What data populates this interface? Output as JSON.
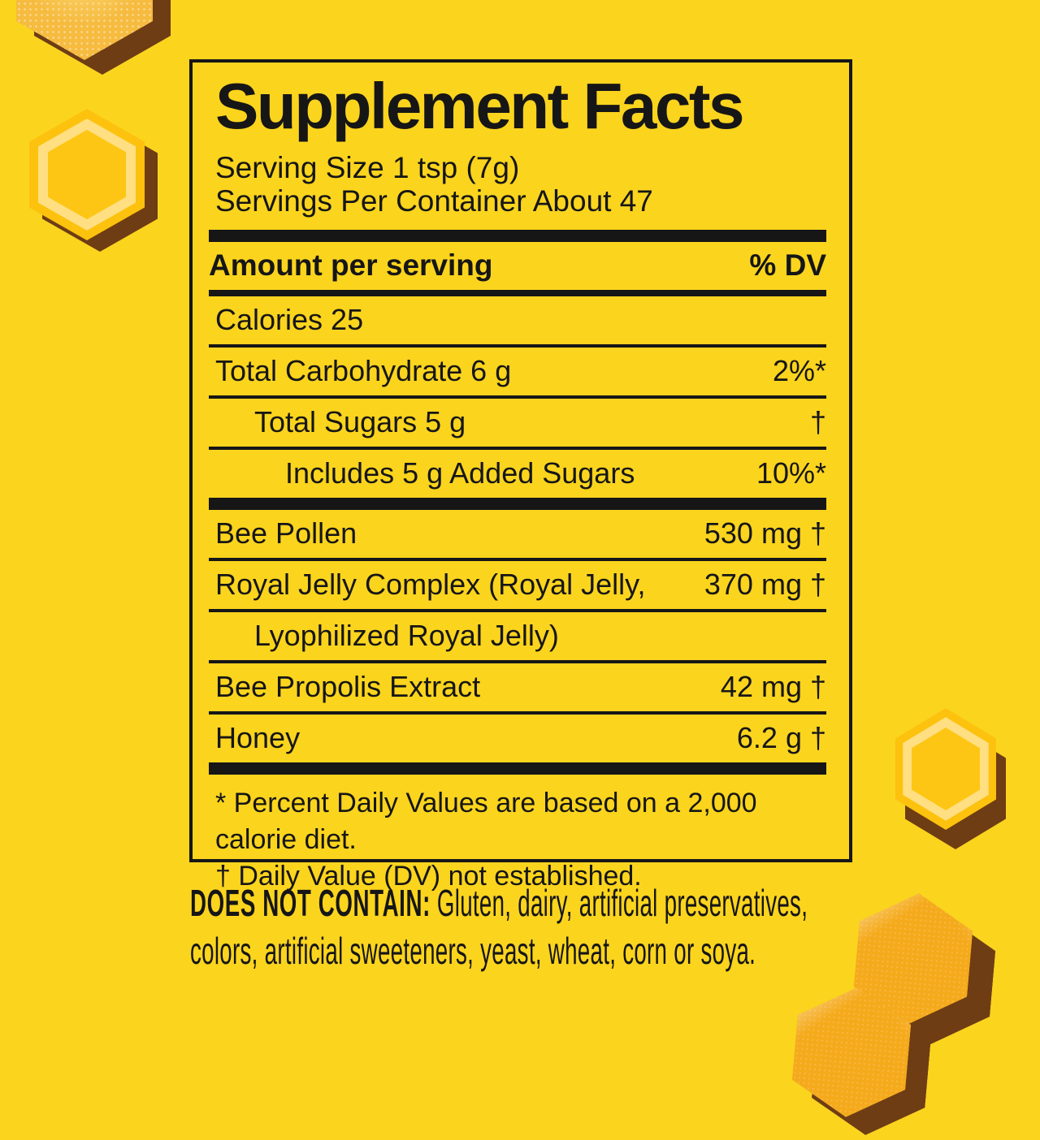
{
  "colors": {
    "background": "#FBD41E",
    "ink": "#161616",
    "gummy": "#FDC20E",
    "gummy_ring": "#FFDF82",
    "gummy_core": "#FEC614",
    "glossy": "#F5AA1C",
    "sugared": "#F6BB3F",
    "shadow": "#6E3D14"
  },
  "label_panel": {
    "title": "Supplement Facts",
    "serving_size": "Serving Size 1 tsp (7g)",
    "servings_per_container": "Servings Per Container About 47",
    "column_header": {
      "amount": "Amount per serving",
      "dv": "% DV"
    },
    "rows": [
      {
        "label": "Calories 25",
        "value": "",
        "indent": 0,
        "separator": "thin"
      },
      {
        "label": "Total Carbohydrate 6 g",
        "value": "2%*",
        "indent": 0,
        "separator": "thin"
      },
      {
        "label": "Total Sugars 5 g",
        "value": "†",
        "indent": 1,
        "separator": "thin"
      },
      {
        "label": "Includes 5 g Added Sugars",
        "value": "10%*",
        "indent": 2,
        "separator": "thick"
      },
      {
        "label": "Bee Pollen",
        "value": "530 mg †",
        "indent": 0,
        "separator": "thin"
      },
      {
        "label": "Royal Jelly Complex (Royal Jelly,",
        "value": "370 mg †",
        "indent": 0,
        "separator": "thin"
      },
      {
        "label": "Lyophilized Royal Jelly)",
        "value": "",
        "indent": 1,
        "separator": "thin"
      },
      {
        "label": "Bee Propolis Extract",
        "value": "42 mg †",
        "indent": 0,
        "separator": "thin"
      },
      {
        "label": "Honey",
        "value": "6.2 g †",
        "indent": 0,
        "separator": "thick"
      }
    ],
    "footnotes": [
      "* Percent Daily Values are based on a 2,000 calorie diet.",
      "† Daily Value (DV) not established."
    ]
  },
  "does_not_contain": {
    "label": "DOES NOT CONTAIN:",
    "line1_rest": " Gluten, dairy, artificial preservatives,",
    "line2": "colors, artificial sweeteners, yeast, wheat, corn or soya."
  },
  "decor": {
    "hexagons": [
      "sugared-hexagon-top-left-cut",
      "outlined-gummy-hexagon-left",
      "outlined-gummy-hexagon-right",
      "glossy-hexagon-bottom-right",
      "glossy-hexagon-bottom-edge"
    ]
  }
}
